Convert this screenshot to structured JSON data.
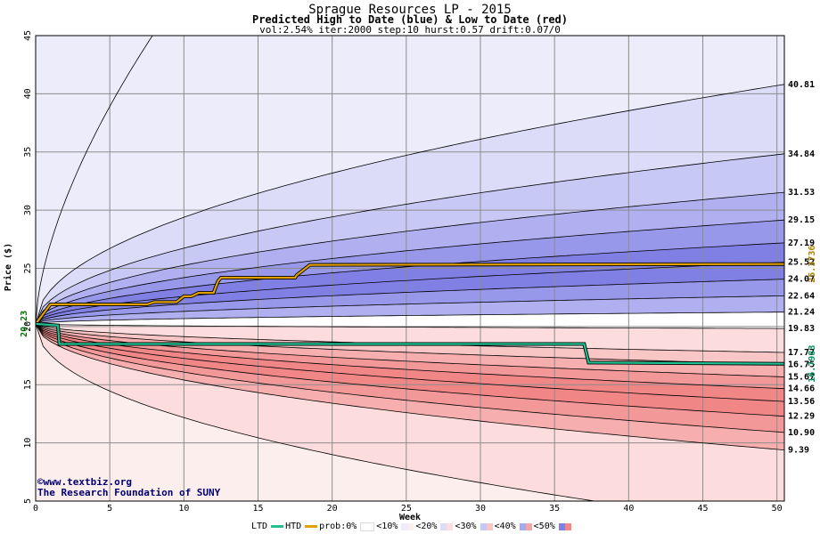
{
  "chart_data": {
    "type": "area",
    "title": "Sprague Resources LP - 2015",
    "subtitle": "Predicted High to Date (blue) &  Low to Date (red)",
    "params": "vol:2.54% iter:2000 step:10 hurst:0.57 drift:0.07/0",
    "xlabel": "Week",
    "ylabel": "Price ($)",
    "xlim": [
      0,
      50.5
    ],
    "ylim": [
      5,
      45
    ],
    "xticks": [
      0,
      5,
      10,
      15,
      20,
      25,
      30,
      35,
      40,
      45,
      50
    ],
    "yticks": [
      5,
      10,
      15,
      20,
      25,
      30,
      35,
      40,
      45
    ],
    "grid": true,
    "start_price": "20.23",
    "start_value": 20.23,
    "high_curves": [
      {
        "end": 40.81,
        "label": "40.81"
      },
      {
        "end": 34.84,
        "label": "34.84"
      },
      {
        "end": 31.53,
        "label": "31.53"
      },
      {
        "end": 29.15,
        "label": "29.15"
      },
      {
        "end": 27.19,
        "label": "27.19"
      },
      {
        "end": 25.52,
        "label": "25.52"
      },
      {
        "end": 24.07,
        "label": "24.07"
      },
      {
        "end": 22.64,
        "label": "22.64"
      },
      {
        "end": 21.24,
        "label": "21.24"
      }
    ],
    "low_curves": [
      {
        "end": 19.83,
        "label": "19.83"
      },
      {
        "end": 17.77,
        "label": "17.77"
      },
      {
        "end": 16.75,
        "label": "16.75"
      },
      {
        "end": 15.67,
        "label": "15.67"
      },
      {
        "end": 14.66,
        "label": "14.66"
      },
      {
        "end": 13.56,
        "label": "13.56"
      },
      {
        "end": 12.29,
        "label": "12.29"
      },
      {
        "end": 10.9,
        "label": "10.90"
      },
      {
        "end": 9.39,
        "label": "9.39"
      }
    ],
    "series": [
      {
        "name": "HTD",
        "color": "#e0a000",
        "points": [
          [
            0,
            20.23
          ],
          [
            1,
            21.9
          ],
          [
            7.5,
            21.9
          ],
          [
            8,
            22.1
          ],
          [
            9.5,
            22.1
          ],
          [
            10,
            22.6
          ],
          [
            10.5,
            22.6
          ],
          [
            11,
            22.9
          ],
          [
            12,
            22.9
          ],
          [
            12.3,
            23.9
          ],
          [
            12.5,
            24.2
          ],
          [
            17.5,
            24.2
          ],
          [
            17.6,
            24.4
          ],
          [
            18,
            24.8
          ],
          [
            18.5,
            25.3
          ],
          [
            50.5,
            25.37
          ]
        ],
        "end_label": "25.3736"
      },
      {
        "name": "LTD",
        "color": "#20c090",
        "points": [
          [
            0,
            20.23
          ],
          [
            1.5,
            20.1
          ],
          [
            1.6,
            18.5
          ],
          [
            37,
            18.5
          ],
          [
            37.3,
            16.9
          ],
          [
            50.5,
            16.8
          ]
        ],
        "end_label": "16.7983"
      }
    ],
    "legend": {
      "ltd": "LTD",
      "htd": "HTD",
      "prob_prefix": "prob:0%",
      "bands": [
        "<10%",
        "<20%",
        "<30%",
        "<40%",
        "<50%"
      ]
    },
    "colors": {
      "blue_bands": [
        "#ececfb",
        "#dcdcf8",
        "#c8c8f5",
        "#b0b0f0",
        "#9898ea",
        "#8080e4"
      ],
      "red_bands": [
        "#fdeeee",
        "#fcdcdc",
        "#f9c6c6",
        "#f6aeae",
        "#f39898",
        "#f08686"
      ],
      "grid": "#8c8c8c"
    }
  },
  "credit": {
    "line1": "©www.textbiz.org",
    "line2": "The Research Foundation of SUNY"
  }
}
